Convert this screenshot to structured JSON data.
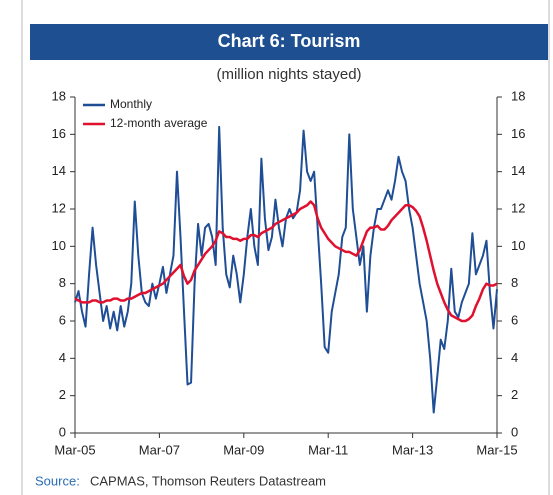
{
  "chart_data": {
    "type": "line",
    "title": "Chart 6: Tourism",
    "subtitle": "(million nights stayed)",
    "source_label": "Source:",
    "source": "CAPMAS, Thomson Reuters Datastream",
    "categories": [
      "Mar-05",
      null,
      null,
      null,
      null,
      null,
      null,
      null,
      null,
      null,
      null,
      null,
      null,
      null,
      null,
      null,
      null,
      null,
      null,
      null,
      null,
      null,
      null,
      null,
      "Mar-07",
      null,
      null,
      null,
      null,
      null,
      null,
      null,
      null,
      null,
      null,
      null,
      null,
      null,
      null,
      null,
      null,
      null,
      null,
      null,
      null,
      null,
      null,
      null,
      "Mar-09",
      null,
      null,
      null,
      null,
      null,
      null,
      null,
      null,
      null,
      null,
      null,
      null,
      null,
      null,
      null,
      null,
      null,
      null,
      null,
      null,
      null,
      null,
      null,
      "Mar-11",
      null,
      null,
      null,
      null,
      null,
      null,
      null,
      null,
      null,
      null,
      null,
      null,
      null,
      null,
      null,
      null,
      null,
      null,
      null,
      null,
      null,
      null,
      null,
      "Mar-13",
      null,
      null,
      null,
      null,
      null,
      null,
      null,
      null,
      null,
      null,
      null,
      null,
      null,
      null,
      null,
      null,
      null,
      null,
      null,
      null,
      null,
      null,
      null,
      "Mar-15"
    ],
    "series": [
      {
        "name": "Monthly",
        "color": "#1f4e96",
        "values": [
          7.0,
          7.6,
          6.5,
          5.7,
          8.5,
          11.0,
          9.0,
          7.5,
          6.0,
          6.8,
          5.6,
          6.5,
          5.5,
          6.8,
          5.7,
          6.5,
          8.0,
          12.4,
          9.5,
          7.5,
          7.0,
          6.8,
          8.0,
          7.2,
          8.0,
          8.9,
          7.5,
          8.5,
          9.5,
          14.0,
          10.5,
          6.5,
          2.6,
          2.7,
          8.0,
          11.2,
          9.5,
          11.0,
          11.2,
          10.5,
          9.0,
          16.4,
          11.0,
          8.5,
          7.8,
          9.5,
          8.5,
          7.0,
          8.5,
          10.5,
          12.0,
          10.0,
          9.0,
          14.7,
          11.5,
          9.8,
          10.5,
          12.5,
          11.0,
          10.0,
          11.5,
          12.0,
          11.5,
          11.8,
          13.0,
          16.2,
          14.0,
          13.5,
          14.0,
          11.0,
          8.0,
          4.6,
          4.3,
          6.5,
          7.5,
          8.5,
          10.5,
          11.0,
          16.0,
          12.0,
          10.5,
          9.0,
          10.0,
          6.5,
          9.5,
          11.0,
          12.0,
          12.0,
          12.5,
          13.0,
          12.5,
          13.5,
          14.8,
          14.0,
          13.5,
          12.0,
          11.0,
          9.5,
          8.0,
          7.0,
          6.0,
          4.0,
          1.1,
          3.0,
          5.0,
          4.5,
          6.0,
          8.8,
          6.5,
          6.2,
          7.0,
          7.5,
          8.0,
          10.7,
          8.5,
          9.0,
          9.5,
          10.3,
          7.5,
          5.6,
          7.7
        ]
      },
      {
        "name": "12-month average",
        "color": "#e0102f",
        "values": [
          7.2,
          7.1,
          7.0,
          7.0,
          7.0,
          7.1,
          7.1,
          7.0,
          7.0,
          7.1,
          7.1,
          7.2,
          7.2,
          7.1,
          7.1,
          7.2,
          7.2,
          7.3,
          7.4,
          7.5,
          7.5,
          7.6,
          7.7,
          7.8,
          7.9,
          8.0,
          8.2,
          8.4,
          8.6,
          8.8,
          9.0,
          8.4,
          8.0,
          8.2,
          8.7,
          9.0,
          9.3,
          9.6,
          9.8,
          10.0,
          10.3,
          10.8,
          10.7,
          10.5,
          10.5,
          10.4,
          10.4,
          10.3,
          10.4,
          10.4,
          10.6,
          10.6,
          10.5,
          10.7,
          10.8,
          10.9,
          11.0,
          11.2,
          11.3,
          11.4,
          11.5,
          11.6,
          11.7,
          11.8,
          12.0,
          12.1,
          12.2,
          12.4,
          12.2,
          11.5,
          11.0,
          10.7,
          10.4,
          10.2,
          10.0,
          9.9,
          9.8,
          9.7,
          9.7,
          9.6,
          9.5,
          9.8,
          10.3,
          10.8,
          11.0,
          11.0,
          11.1,
          10.9,
          10.9,
          11.1,
          11.4,
          11.6,
          11.8,
          12.0,
          12.2,
          12.2,
          12.1,
          11.9,
          11.6,
          11.0,
          10.3,
          9.5,
          8.7,
          8.0,
          7.5,
          7.0,
          6.6,
          6.3,
          6.2,
          6.1,
          6.0,
          6.0,
          6.1,
          6.3,
          6.8,
          7.2,
          7.7,
          8.0,
          7.9,
          7.9,
          8.0
        ]
      }
    ],
    "ylim": [
      0,
      18
    ],
    "yticks": [
      0,
      2,
      4,
      6,
      8,
      10,
      12,
      14,
      16,
      18
    ],
    "y2lim": [
      0,
      18
    ],
    "y2ticks": [
      0,
      2,
      4,
      6,
      8,
      10,
      12,
      14,
      16,
      18
    ],
    "legend": "upper left"
  }
}
